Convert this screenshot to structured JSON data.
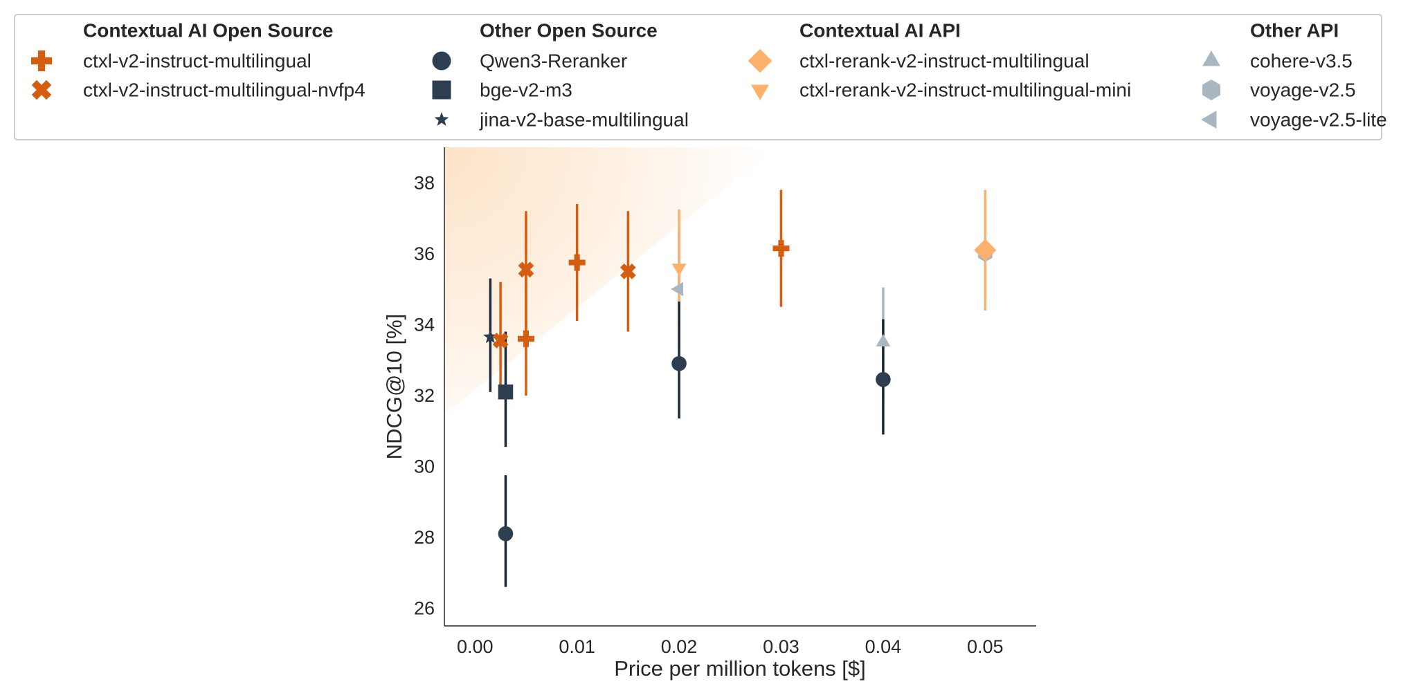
{
  "chart_data": {
    "type": "scatter",
    "title": "",
    "xlabel": "Price per million tokens [$]",
    "ylabel": "NDCG@10 [%]",
    "xlim": [
      -0.003,
      0.055
    ],
    "ylim": [
      25.5,
      39.0
    ],
    "xticks": [
      0.0,
      0.01,
      0.02,
      0.03,
      0.04,
      0.05
    ],
    "xtick_labels": [
      "0.00",
      "0.01",
      "0.02",
      "0.03",
      "0.04",
      "0.05"
    ],
    "yticks": [
      26,
      28,
      30,
      32,
      34,
      36,
      38
    ],
    "ytick_labels": [
      "26",
      "28",
      "30",
      "32",
      "34",
      "36",
      "38"
    ],
    "grid": false,
    "legend_position": "top",
    "colors": {
      "ctxl_open": "#d45d0f",
      "ctxl_api": "#fbb06c",
      "other_open": "#2d3e50",
      "other_api": "#a9b7c3",
      "highlight": "#fde3c8"
    },
    "legend_groups": [
      {
        "title": "Contextual AI Open Source",
        "entries": [
          {
            "label": "ctxl-v2-instruct-multilingual",
            "marker": "plus",
            "color": "#d45d0f"
          },
          {
            "label": "ctxl-v2-instruct-multilingual-nvfp4",
            "marker": "x",
            "color": "#d45d0f"
          }
        ]
      },
      {
        "title": "Other Open Source",
        "entries": [
          {
            "label": "Qwen3-Reranker",
            "marker": "circle",
            "color": "#2d3e50"
          },
          {
            "label": "bge-v2-m3",
            "marker": "square",
            "color": "#2d3e50"
          },
          {
            "label": "jina-v2-base-multilingual",
            "marker": "star",
            "color": "#2d3e50"
          }
        ]
      },
      {
        "title": "Contextual AI API",
        "entries": [
          {
            "label": "ctxl-rerank-v2-instruct-multilingual",
            "marker": "diamond",
            "color": "#fbb06c"
          },
          {
            "label": "ctxl-rerank-v2-instruct-multilingual-mini",
            "marker": "triangle-down",
            "color": "#fbb06c"
          }
        ]
      },
      {
        "title": "Other API",
        "entries": [
          {
            "label": "cohere-v3.5",
            "marker": "triangle-up",
            "color": "#a9b7c3"
          },
          {
            "label": "voyage-v2.5",
            "marker": "hexagon",
            "color": "#a9b7c3"
          },
          {
            "label": "voyage-v2.5-lite",
            "marker": "triangle-left",
            "color": "#a9b7c3"
          }
        ]
      }
    ],
    "points": [
      {
        "series": "ctxl-v2-instruct-multilingual",
        "x": 0.005,
        "y": 33.6,
        "err_low": 32.0,
        "err_high": 35.4,
        "marker": "plus",
        "color": "#d45d0f"
      },
      {
        "series": "ctxl-v2-instruct-multilingual",
        "x": 0.01,
        "y": 35.75,
        "err_low": 34.1,
        "err_high": 37.4,
        "marker": "plus",
        "color": "#d45d0f"
      },
      {
        "series": "ctxl-v2-instruct-multilingual",
        "x": 0.03,
        "y": 36.15,
        "err_low": 34.5,
        "err_high": 37.8,
        "marker": "plus",
        "color": "#d45d0f"
      },
      {
        "series": "ctxl-v2-instruct-multilingual-nvfp4",
        "x": 0.0025,
        "y": 33.55,
        "err_low": 31.9,
        "err_high": 35.2,
        "marker": "x",
        "color": "#d45d0f"
      },
      {
        "series": "ctxl-v2-instruct-multilingual-nvfp4",
        "x": 0.005,
        "y": 35.55,
        "err_low": 33.9,
        "err_high": 37.2,
        "marker": "x",
        "color": "#d45d0f"
      },
      {
        "series": "ctxl-v2-instruct-multilingual-nvfp4",
        "x": 0.015,
        "y": 35.5,
        "err_low": 33.8,
        "err_high": 37.2,
        "marker": "x",
        "color": "#d45d0f"
      },
      {
        "series": "Qwen3-Reranker",
        "x": 0.003,
        "y": 28.1,
        "err_low": 26.6,
        "err_high": 29.75,
        "marker": "circle",
        "color": "#2d3e50"
      },
      {
        "series": "Qwen3-Reranker",
        "x": 0.02,
        "y": 32.9,
        "err_low": 31.35,
        "err_high": 34.65,
        "marker": "circle",
        "color": "#2d3e50"
      },
      {
        "series": "Qwen3-Reranker",
        "x": 0.04,
        "y": 32.45,
        "err_low": 30.9,
        "err_high": 34.15,
        "marker": "circle",
        "color": "#2d3e50"
      },
      {
        "series": "bge-v2-m3",
        "x": 0.003,
        "y": 32.1,
        "err_low": 30.55,
        "err_high": 33.8,
        "marker": "square",
        "color": "#2d3e50"
      },
      {
        "series": "jina-v2-base-multilingual",
        "x": 0.0015,
        "y": 33.65,
        "err_low": 32.1,
        "err_high": 35.3,
        "marker": "star",
        "color": "#2d3e50"
      },
      {
        "series": "ctxl-rerank-v2-instruct-multilingual",
        "x": 0.05,
        "y": 36.1,
        "err_low": 34.45,
        "err_high": 37.8,
        "marker": "diamond",
        "color": "#fbb06c"
      },
      {
        "series": "ctxl-rerank-v2-instruct-multilingual-mini",
        "x": 0.02,
        "y": 35.6,
        "err_low": 33.9,
        "err_high": 37.25,
        "marker": "triangle-down",
        "color": "#fbb06c"
      },
      {
        "series": "cohere-v3.5",
        "x": 0.04,
        "y": 33.5,
        "err_low": 31.85,
        "err_high": 35.05,
        "marker": "triangle-up",
        "color": "#a9b7c3"
      },
      {
        "series": "voyage-v2.5",
        "x": 0.05,
        "y": 36.0,
        "err_low": 34.4,
        "err_high": 37.65,
        "marker": "hexagon",
        "color": "#a9b7c3"
      },
      {
        "series": "voyage-v2.5-lite",
        "x": 0.02,
        "y": 35.0,
        "err_low": 33.3,
        "err_high": 36.65,
        "marker": "triangle-left",
        "color": "#a9b7c3"
      }
    ]
  }
}
